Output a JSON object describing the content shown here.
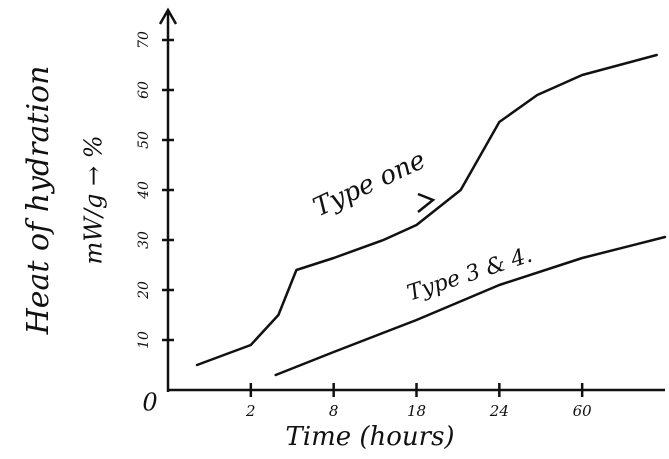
{
  "chart_data": {
    "type": "line",
    "y_label": "Heat of hydration",
    "y_label_2": "mW/g → %",
    "x_label": "Time (hours)",
    "xlim": [
      0,
      90
    ],
    "xticks": [
      0,
      2,
      8,
      18,
      24,
      60
    ],
    "ylim": [
      0,
      72
    ],
    "yticks": [
      10,
      20,
      30,
      40,
      50,
      60,
      70
    ],
    "series": [
      {
        "name": "Type one",
        "color": "#111111",
        "x": [
          0.7,
          2,
          4,
          5.3,
          8,
          14,
          18,
          21.2,
          24,
          40.5,
          60,
          87
        ],
        "values": [
          5,
          9,
          15,
          24,
          26.4,
          30,
          33,
          40,
          53.6,
          59,
          63,
          67
        ]
      },
      {
        "name": "Type 3 & 4.",
        "color": "#111111",
        "x": [
          3.8,
          8,
          18,
          24,
          60,
          90
        ],
        "values": [
          3,
          7.6,
          14,
          21,
          26.4,
          30.6
        ]
      }
    ]
  }
}
